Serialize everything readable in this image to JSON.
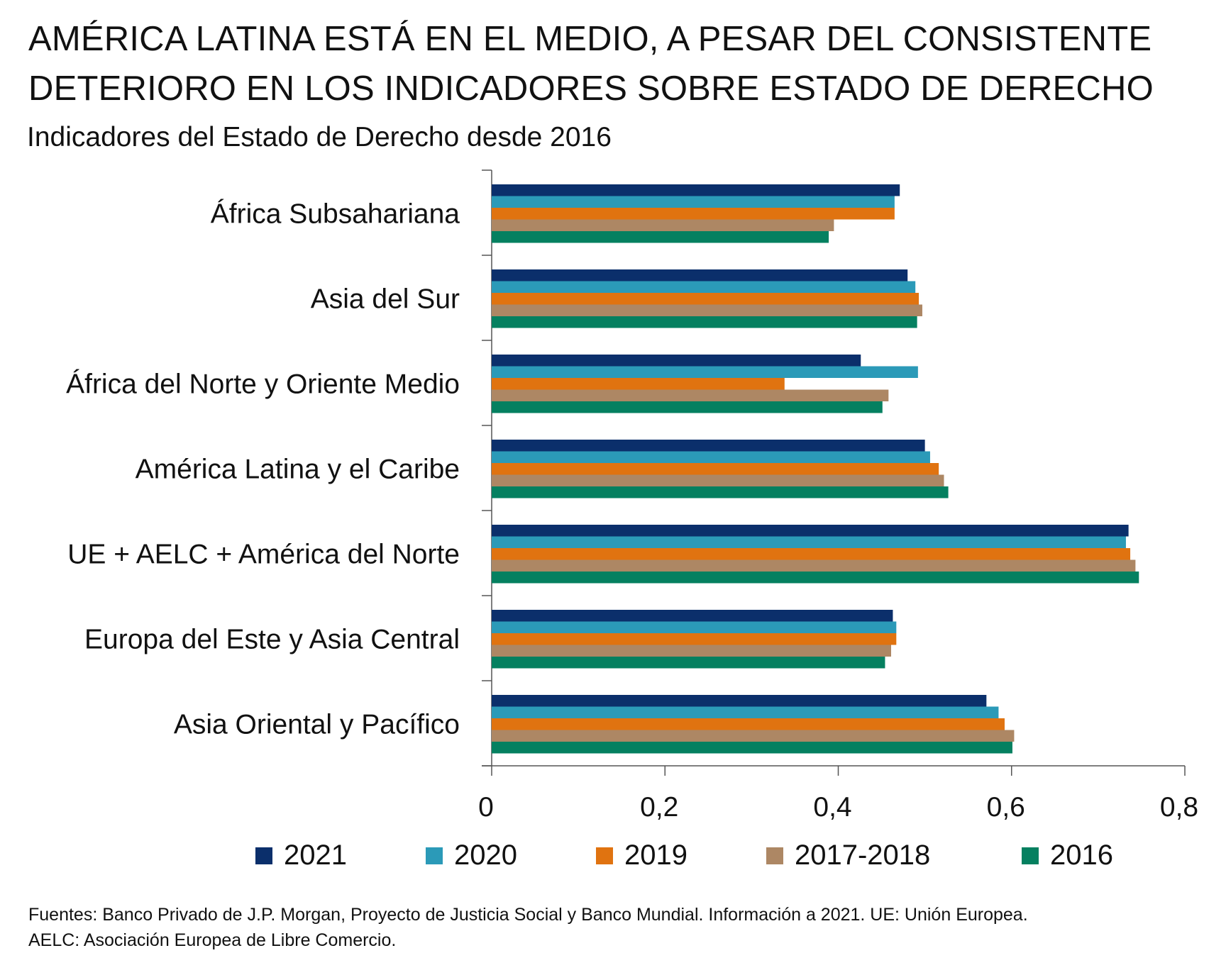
{
  "title_lines": [
    "AMÉRICA LATINA ESTÁ EN EL MEDIO, A PESAR DEL CONSISTENTE",
    "DETERIORO EN LOS INDICADORES SOBRE ESTADO DE DERECHO"
  ],
  "subtitle": "Indicadores del Estado de Derecho desde 2016",
  "source_lines": [
    "Fuentes: Banco Privado de J.P. Morgan, Proyecto de Justicia Social y Banco Mundial. Información a 2021. UE: Unión Europea.",
    "AELC: Asociación Europea de Libre Comercio."
  ],
  "chart_data": {
    "type": "bar",
    "orientation": "horizontal",
    "title": "AMÉRICA LATINA ESTÁ EN EL MEDIO, A PESAR DEL CONSISTENTE DETERIORO EN LOS INDICADORES SOBRE ESTADO DE DERECHO",
    "subtitle": "Indicadores del Estado de Derecho desde 2016",
    "categories": [
      "África Subsahariana",
      "Asia del Sur",
      "África del Norte y Oriente Medio",
      "América Latina y el Caribe",
      "UE + AELC + América del Norte",
      "Europa del Este y Asia Central",
      "Asia Oriental y Pacífico"
    ],
    "series": [
      {
        "name": "2021",
        "color": "#0b2f6b",
        "values": [
          0.471,
          0.48,
          0.426,
          0.5,
          0.735,
          0.463,
          0.571
        ]
      },
      {
        "name": "2020",
        "color": "#2b9ab8",
        "values": [
          0.465,
          0.489,
          0.492,
          0.506,
          0.732,
          0.467,
          0.585
        ]
      },
      {
        "name": "2019",
        "color": "#e07310",
        "values": [
          0.465,
          0.493,
          0.338,
          0.516,
          0.737,
          0.467,
          0.592
        ]
      },
      {
        "name": "2017-2018",
        "color": "#ad8764",
        "values": [
          0.395,
          0.497,
          0.458,
          0.522,
          0.743,
          0.461,
          0.603
        ]
      },
      {
        "name": "2016",
        "color": "#058060",
        "values": [
          0.389,
          0.491,
          0.451,
          0.527,
          0.747,
          0.454,
          0.601
        ]
      }
    ],
    "xlim": [
      0,
      0.8
    ],
    "xticks": [
      0,
      0.2,
      0.4,
      0.6,
      0.8
    ],
    "xtick_labels": [
      "0",
      "0,2",
      "0,4",
      "0,6",
      "0,8"
    ],
    "xlabel": "",
    "ylabel": "",
    "grid": false,
    "legend_position": "bottom"
  }
}
